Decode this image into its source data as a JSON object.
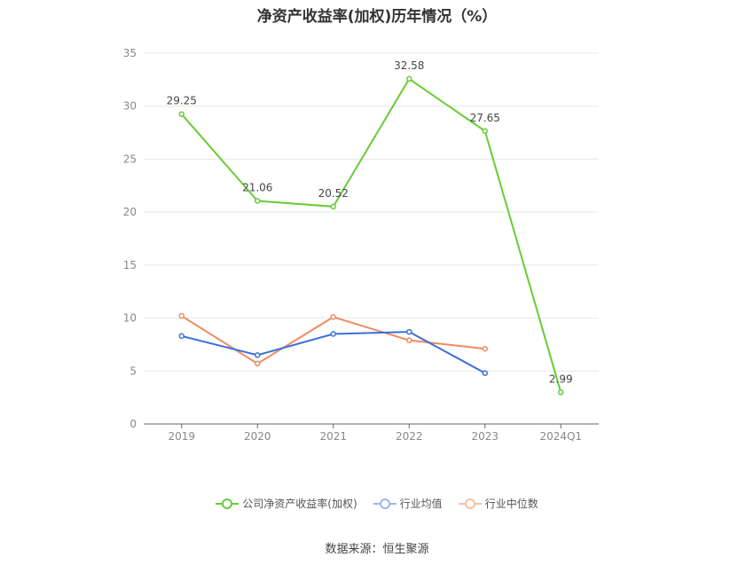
{
  "chart_data": {
    "type": "line",
    "title": "净资产收益率(加权)历年情况（%）",
    "categories": [
      "2019",
      "2020",
      "2021",
      "2022",
      "2023",
      "2024Q1"
    ],
    "ylim": [
      0,
      35
    ],
    "yticks": [
      "0",
      "5",
      "10",
      "15",
      "20",
      "25",
      "30",
      "35"
    ],
    "grid": true,
    "legend_position": "bottom",
    "series": [
      {
        "name": "公司净资产收益率(加权)",
        "color": "#66cc33",
        "values": [
          29.25,
          21.06,
          20.52,
          32.58,
          27.65,
          2.99
        ],
        "labels": [
          "29.25",
          "21.06",
          "20.52",
          "32.58",
          "27.65",
          "2.99"
        ]
      },
      {
        "name": "行业均值",
        "color": "#3a6fd8",
        "values": [
          8.3,
          6.5,
          8.5,
          8.7,
          4.8,
          null
        ]
      },
      {
        "name": "行业中位数",
        "color": "#f08a5d",
        "values": [
          10.2,
          5.7,
          10.1,
          7.9,
          7.1,
          null
        ]
      }
    ]
  },
  "source_text": "数据来源：恒生聚源"
}
